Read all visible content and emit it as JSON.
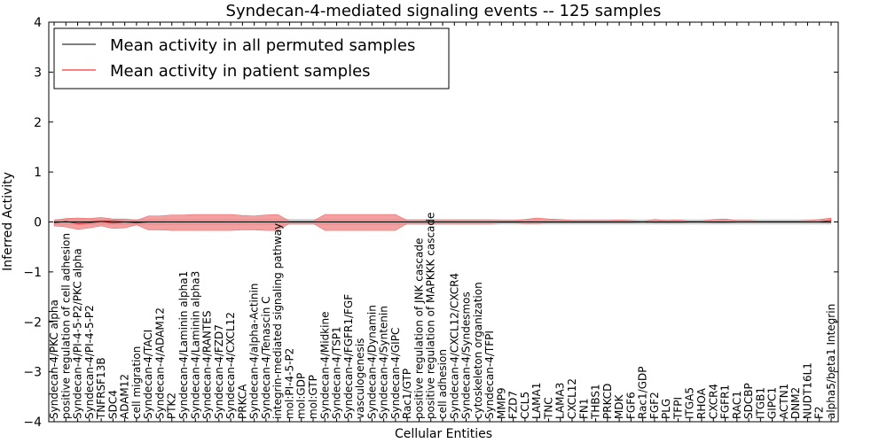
{
  "chart_data": {
    "type": "line",
    "title": "Syndecan-4-mediated signaling events -- 125 samples",
    "xlabel": "Cellular Entities",
    "ylabel": "Inferred Activity",
    "ylim": [
      -4,
      4
    ],
    "yticks": [
      -4,
      -3,
      -2,
      -1,
      0,
      1,
      2,
      3,
      4
    ],
    "ytick_labels": [
      "−4",
      "−3",
      "−2",
      "−1",
      "0",
      "1",
      "2",
      "3",
      "4"
    ],
    "grid": false,
    "legend_position": "top-left",
    "colors": {
      "permuted": "#000000",
      "patient": "#ff0000",
      "patient_band": "#f08080",
      "permuted_band": "#c8c8c8"
    },
    "categories": [
      "Syndecan-4/PKC alpha",
      "positive regulation of cell adhesion",
      "Syndecan-4/PI-4-5-P2/PKC alpha",
      "Syndecan-4/PI-4-5-P2",
      "TNFRSF13B",
      "SDC4",
      "ADAM12",
      "cell migration",
      "Syndecan-4/TACI",
      "Syndecan-4/ADAM12",
      "PTK2",
      "Syndecan-4/Laminin alpha1",
      "Syndecan-4/Laminin alpha3",
      "Syndecan-4/RANTES",
      "Syndecan-4/FZD7",
      "Syndecan-4/CXCL12",
      "PRKCA",
      "Syndecan-4/alpha-Actinin",
      "Syndecan-4/Tenascin C",
      "integrin-mediated signaling pathway",
      "mol:PI-4-5-P2",
      "mol:GDP",
      "mol:GTP",
      "Syndecan-4/Midkine",
      "Syndecan-4/TSP1",
      "Syndecan-4/FGFR1/FGF",
      "vasculogenesis",
      "Syndecan-4/Dynamin",
      "Syndecan-4/Syntenin",
      "Syndecan-4/GIPC",
      "Rac1/GTP",
      "positive regulation of JNK cascade",
      "positive regulation of MAPKKK cascade",
      "cell adhesion",
      "Syndecan-4/CXCL12/CXCR4",
      "Syndecan-4/Syndesmos",
      "cytoskeleton organization",
      "Syndecan-4/TFPI",
      "MMP9",
      "FZD7",
      "CCL5",
      "LAMA1",
      "TNC",
      "LAMA3",
      "CXCL12",
      "FN1",
      "THBS1",
      "PRKCD",
      "MDK",
      "FGF6",
      "Rac1/GDP",
      "FGF2",
      "PLG",
      "TFPI",
      "ITGA5",
      "RHOA",
      "CXCR4",
      "FGFR1",
      "RAC1",
      "SDCBP",
      "ITGB1",
      "GIPC1",
      "ACTN1",
      "DNM2",
      "NUDT16L1",
      "F2",
      "alpha5/beta1 Integrin"
    ],
    "series": [
      {
        "name": "Mean activity in all permuted samples",
        "values": [
          0.0,
          0.0,
          0.0,
          0.0,
          0.01,
          0.01,
          0.0,
          0.0,
          0.0,
          0.0,
          0.0,
          0.0,
          0.0,
          0.0,
          0.0,
          0.0,
          0.0,
          0.0,
          0.0,
          0.0,
          0.0,
          0.0,
          0.0,
          0.0,
          0.0,
          0.0,
          0.0,
          0.0,
          0.0,
          0.0,
          0.0,
          0.0,
          0.0,
          0.0,
          0.0,
          0.0,
          0.0,
          0.0,
          0.0,
          0.0,
          0.0,
          0.0,
          0.0,
          0.0,
          0.0,
          0.0,
          0.0,
          0.0,
          0.0,
          0.0,
          0.0,
          0.0,
          0.0,
          0.0,
          0.0,
          0.0,
          0.0,
          0.0,
          0.0,
          0.0,
          0.0,
          0.0,
          0.0,
          0.0,
          0.0,
          0.0,
          0.0
        ]
      },
      {
        "name": "Mean activity in patient samples",
        "values": [
          -0.02,
          0.01,
          -0.03,
          -0.02,
          0.01,
          -0.02,
          0.0,
          -0.02,
          0.0,
          0.0,
          0.0,
          0.0,
          0.0,
          0.0,
          0.0,
          0.0,
          0.0,
          0.0,
          0.0,
          0.0,
          0.0,
          0.0,
          0.0,
          0.0,
          0.0,
          0.0,
          0.0,
          0.0,
          0.0,
          0.0,
          0.0,
          0.0,
          0.0,
          0.0,
          0.0,
          0.0,
          0.0,
          0.0,
          0.0,
          0.0,
          0.0,
          0.0,
          0.0,
          0.0,
          0.0,
          0.0,
          0.0,
          0.0,
          0.0,
          0.0,
          0.0,
          0.0,
          0.0,
          0.0,
          0.0,
          0.0,
          0.0,
          0.0,
          0.0,
          0.0,
          0.0,
          0.0,
          0.0,
          0.0,
          0.0,
          0.0,
          0.03
        ],
        "band_upper": [
          0.03,
          0.07,
          0.08,
          0.07,
          0.09,
          0.06,
          0.06,
          0.03,
          0.12,
          0.12,
          0.14,
          0.14,
          0.15,
          0.15,
          0.15,
          0.15,
          0.13,
          0.12,
          0.14,
          0.15,
          0.02,
          0.02,
          0.02,
          0.15,
          0.15,
          0.15,
          0.15,
          0.15,
          0.15,
          0.15,
          0.03,
          0.03,
          0.03,
          0.03,
          0.03,
          0.03,
          0.03,
          0.03,
          0.03,
          0.03,
          0.05,
          0.08,
          0.06,
          0.05,
          0.03,
          0.03,
          0.03,
          0.03,
          0.04,
          0.03,
          0.01,
          0.05,
          0.03,
          0.04,
          0.02,
          0.02,
          0.05,
          0.06,
          0.03,
          0.03,
          0.02,
          0.02,
          0.02,
          0.02,
          0.03,
          0.05,
          0.08
        ],
        "band_lower": [
          -0.08,
          -0.1,
          -0.15,
          -0.12,
          -0.08,
          -0.13,
          -0.12,
          -0.06,
          -0.16,
          -0.16,
          -0.17,
          -0.17,
          -0.17,
          -0.17,
          -0.17,
          -0.17,
          -0.16,
          -0.16,
          -0.17,
          -0.17,
          -0.03,
          -0.03,
          -0.03,
          -0.17,
          -0.17,
          -0.17,
          -0.17,
          -0.17,
          -0.17,
          -0.17,
          -0.03,
          -0.03,
          -0.03,
          -0.03,
          -0.03,
          -0.03,
          -0.03,
          -0.03,
          -0.02,
          -0.02,
          -0.03,
          -0.03,
          -0.02,
          -0.02,
          -0.02,
          -0.02,
          -0.02,
          -0.02,
          -0.02,
          -0.02,
          -0.01,
          -0.02,
          -0.02,
          -0.02,
          -0.01,
          -0.01,
          -0.02,
          -0.02,
          -0.01,
          -0.01,
          -0.01,
          -0.01,
          -0.01,
          -0.01,
          -0.01,
          -0.01,
          -0.02
        ]
      }
    ],
    "permuted_band_upper": [
      0.06,
      0.06,
      0.06,
      0.06,
      0.06,
      0.06,
      0.06,
      0.06,
      0.06,
      0.06,
      0.06,
      0.06,
      0.06,
      0.06,
      0.06,
      0.06,
      0.06,
      0.06,
      0.06,
      0.06,
      0.06,
      0.06,
      0.06,
      0.06,
      0.06,
      0.06,
      0.06,
      0.06,
      0.06,
      0.06,
      0.06,
      0.06,
      0.06,
      0.06,
      0.06,
      0.06,
      0.06,
      0.06,
      0.05,
      0.05,
      0.05,
      0.05,
      0.05,
      0.05,
      0.05,
      0.05,
      0.05,
      0.05,
      0.05,
      0.05,
      0.05,
      0.05,
      0.05,
      0.05,
      0.05,
      0.05,
      0.05,
      0.05,
      0.05,
      0.05,
      0.05,
      0.05,
      0.05,
      0.05,
      0.05,
      0.05,
      0.05
    ],
    "permuted_band_lower": [
      -0.06,
      -0.06,
      -0.06,
      -0.06,
      -0.06,
      -0.06,
      -0.06,
      -0.06,
      -0.06,
      -0.06,
      -0.06,
      -0.06,
      -0.06,
      -0.06,
      -0.06,
      -0.06,
      -0.06,
      -0.06,
      -0.06,
      -0.06,
      -0.06,
      -0.06,
      -0.06,
      -0.06,
      -0.06,
      -0.06,
      -0.06,
      -0.06,
      -0.06,
      -0.06,
      -0.06,
      -0.06,
      -0.06,
      -0.06,
      -0.06,
      -0.06,
      -0.06,
      -0.06,
      -0.05,
      -0.05,
      -0.05,
      -0.05,
      -0.05,
      -0.05,
      -0.05,
      -0.05,
      -0.05,
      -0.05,
      -0.05,
      -0.05,
      -0.05,
      -0.05,
      -0.05,
      -0.05,
      -0.05,
      -0.05,
      -0.05,
      -0.05,
      -0.05,
      -0.05,
      -0.05,
      -0.05,
      -0.05,
      -0.05,
      -0.05,
      -0.05,
      -0.05
    ]
  }
}
